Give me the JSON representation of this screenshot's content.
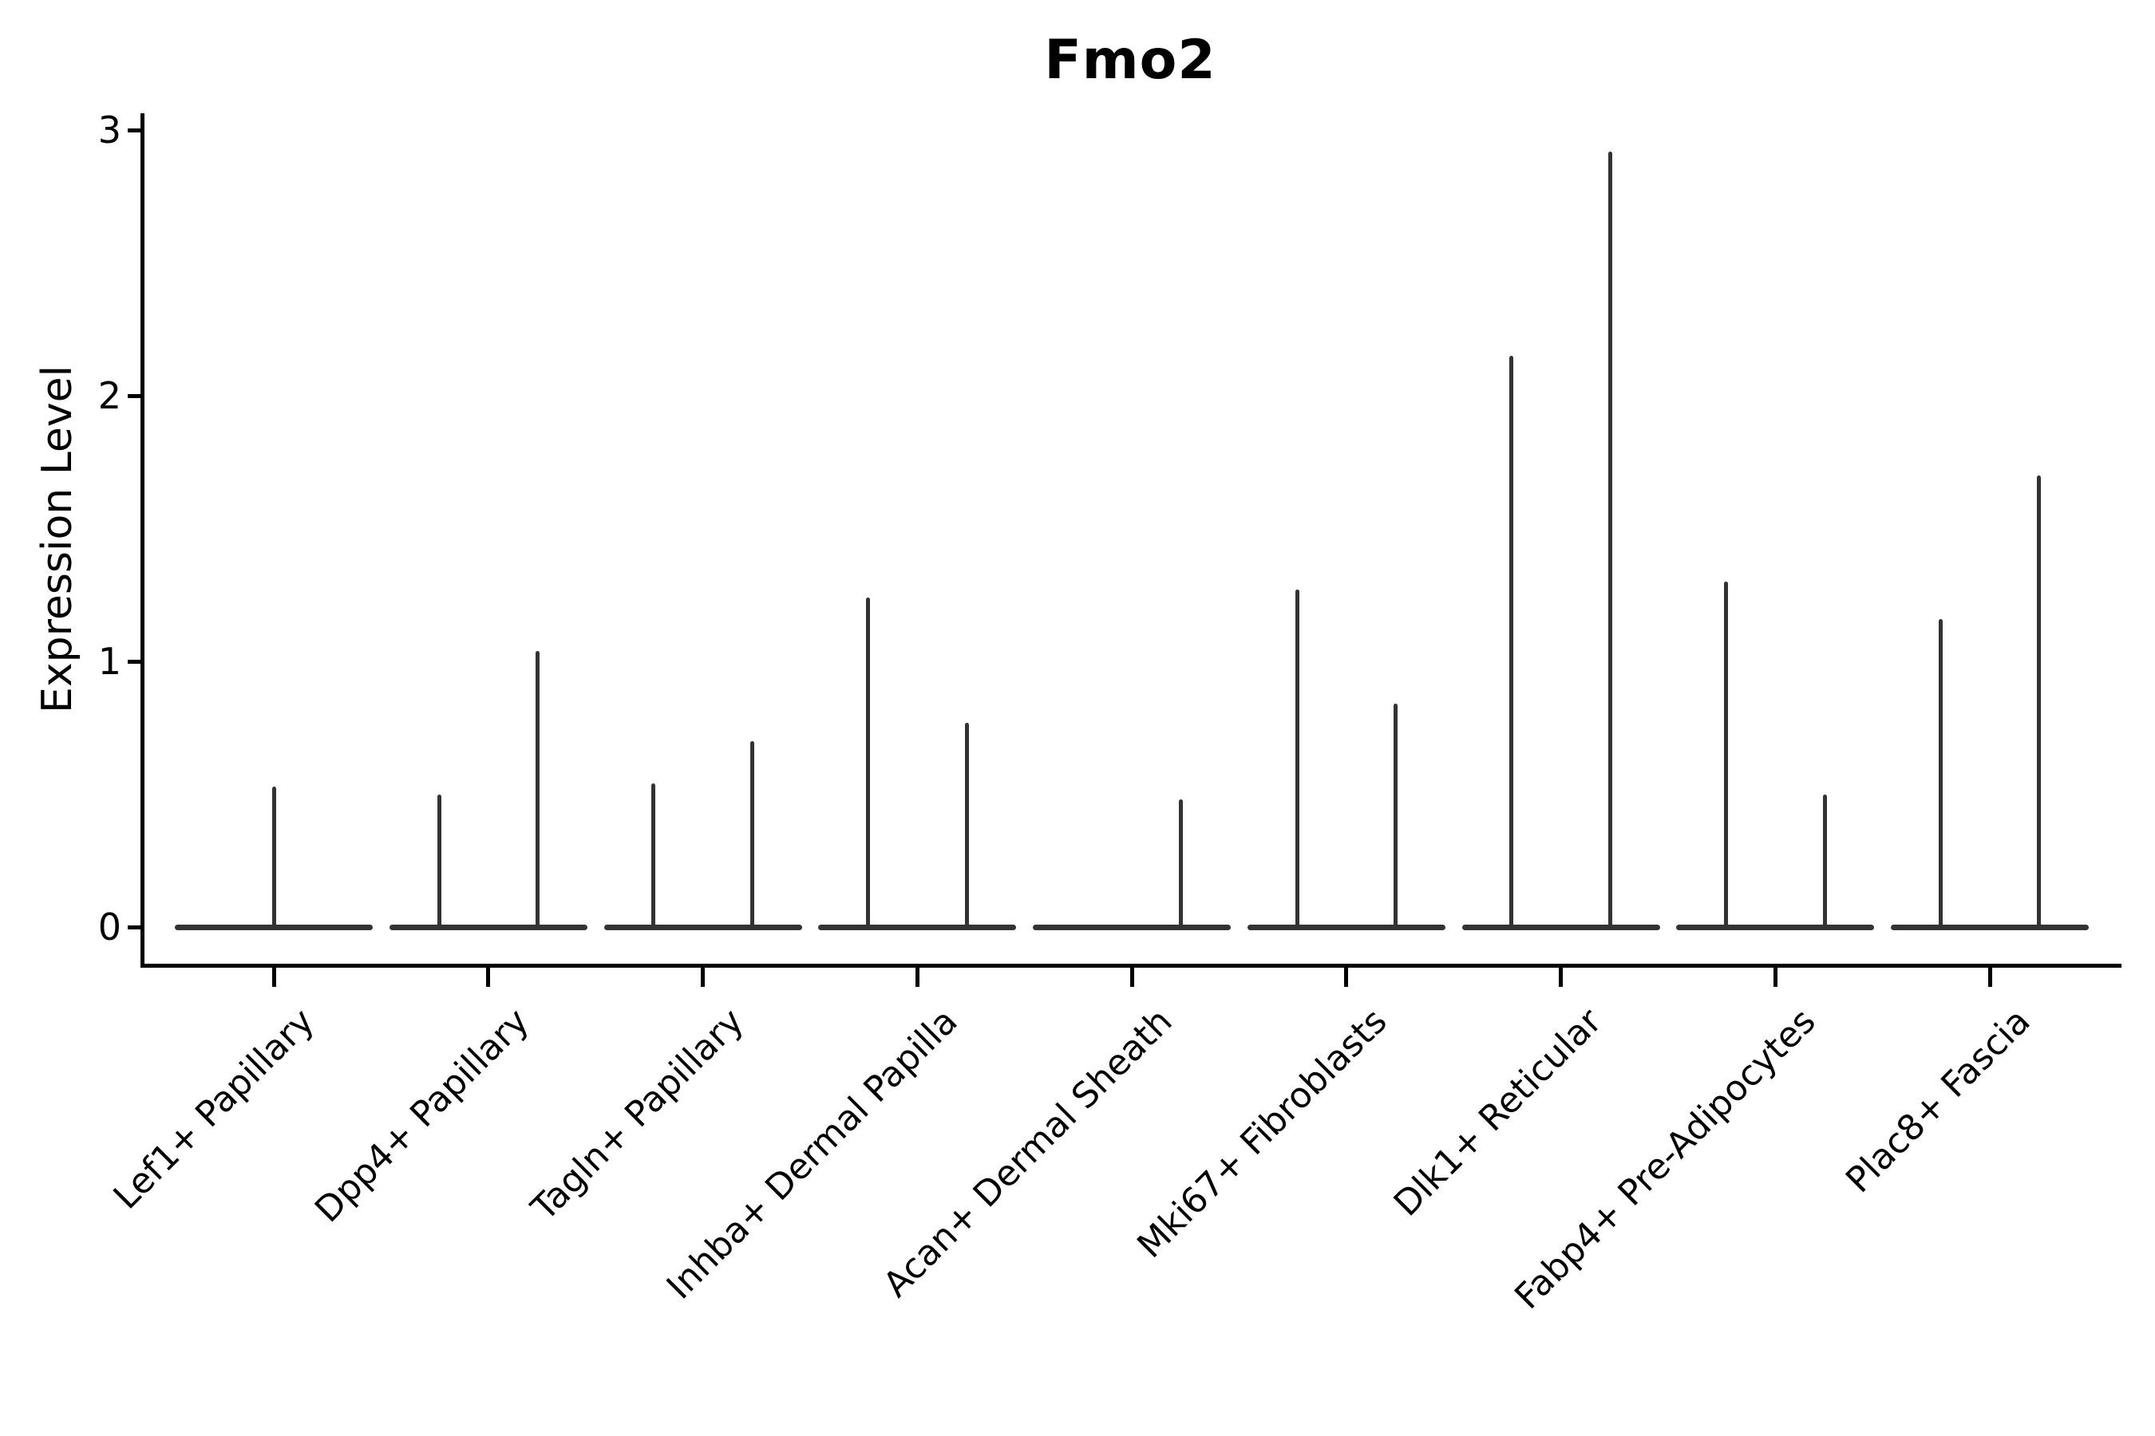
{
  "figure": {
    "background_color": "#ffffff",
    "axis_color": "#000000",
    "violin_color": "#333333",
    "text_color": "#000000"
  },
  "chart_data": {
    "type": "violin",
    "title": "Fmo2",
    "ylabel": "Expression Level",
    "xlabel": "",
    "ylim": [
      0,
      3
    ],
    "yticks": [
      "0",
      "1",
      "2",
      "3"
    ],
    "grid": false,
    "legend": null,
    "x_tick_rotation_deg": 45,
    "baseline_value": 0,
    "description": "Violin plot of Fmo2 expression; each cluster shows flat violins at 0 with thin spikes up to the maximum expression value (dodged violins: left/right = two groups per cluster, center = single full-width violin).",
    "categories": [
      {
        "label": "Lef1+ Papillary",
        "violins": [
          {
            "slot": "center",
            "max_expression": 0.53
          }
        ]
      },
      {
        "label": "Dpp4+ Papillary",
        "violins": [
          {
            "slot": "left",
            "max_expression": 0.5
          },
          {
            "slot": "right",
            "max_expression": 1.04
          }
        ]
      },
      {
        "label": "Tagln+ Papillary",
        "violins": [
          {
            "slot": "left",
            "max_expression": 0.54
          },
          {
            "slot": "right",
            "max_expression": 0.7
          }
        ]
      },
      {
        "label": "Inhba+ Dermal Papilla",
        "violins": [
          {
            "slot": "left",
            "max_expression": 1.24
          },
          {
            "slot": "right",
            "max_expression": 0.77
          }
        ]
      },
      {
        "label": "Acan+ Dermal Sheath",
        "violins": [
          {
            "slot": "right",
            "max_expression": 0.48
          }
        ]
      },
      {
        "label": "Mki67+ Fibroblasts",
        "violins": [
          {
            "slot": "left",
            "max_expression": 1.27
          },
          {
            "slot": "right",
            "max_expression": 0.84
          }
        ]
      },
      {
        "label": "Dlk1+ Reticular",
        "violins": [
          {
            "slot": "left",
            "max_expression": 2.15
          },
          {
            "slot": "right",
            "max_expression": 2.92
          }
        ]
      },
      {
        "label": "Fabp4+ Pre-Adipocytes",
        "violins": [
          {
            "slot": "left",
            "max_expression": 1.3
          },
          {
            "slot": "right",
            "max_expression": 0.5
          }
        ]
      },
      {
        "label": "Plac8+ Fascia",
        "violins": [
          {
            "slot": "left",
            "max_expression": 1.16
          },
          {
            "slot": "right",
            "max_expression": 1.7
          }
        ]
      }
    ]
  }
}
